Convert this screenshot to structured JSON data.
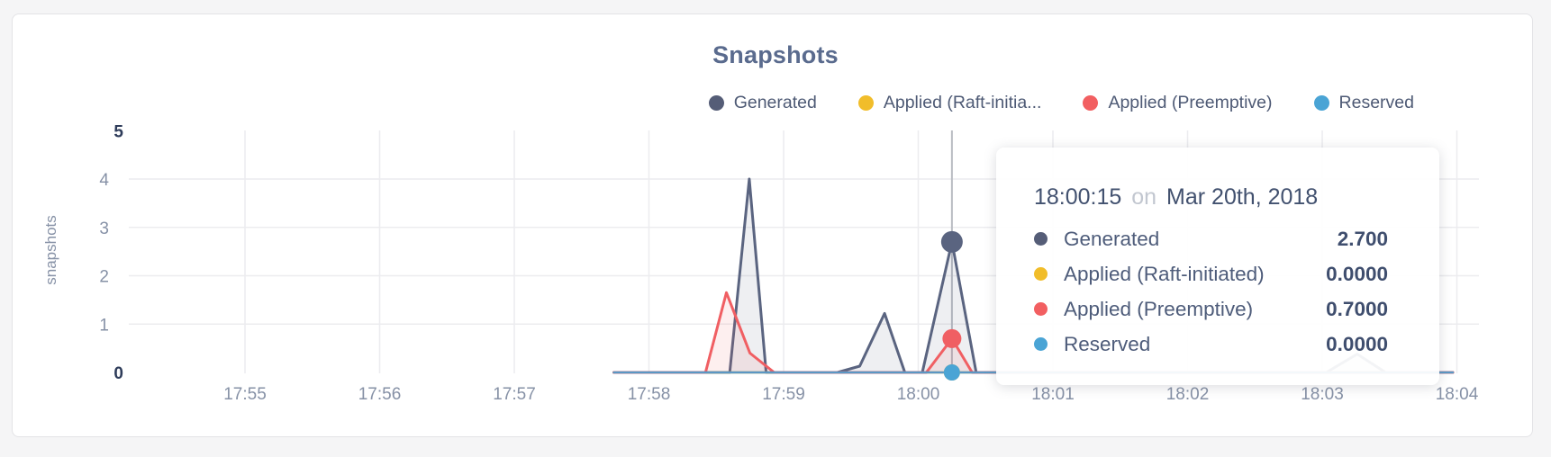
{
  "chart_data": {
    "type": "area",
    "title": "Snapshots",
    "ylabel": "snapshots",
    "x_ticks": [
      "17:55",
      "17:56",
      "17:57",
      "17:58",
      "17:59",
      "18:00",
      "18:01",
      "18:02",
      "18:03",
      "18:04"
    ],
    "x_unit": "minutes after 17:55",
    "ylim": [
      0,
      5
    ],
    "grid": true,
    "legend_position": "top-right",
    "y_ticks": [
      {
        "value": 5,
        "label": "5",
        "emphasis": true
      },
      {
        "value": 4,
        "label": "4",
        "emphasis": false
      },
      {
        "value": 3,
        "label": "3",
        "emphasis": false
      },
      {
        "value": 2,
        "label": "2",
        "emphasis": false
      },
      {
        "value": 1,
        "label": "1",
        "emphasis": false
      },
      {
        "value": 0,
        "label": "0",
        "emphasis": true
      }
    ],
    "y_gridlines": [
      4,
      3,
      2,
      1
    ],
    "series": [
      {
        "name": "Generated",
        "color": "#5a6480",
        "fill": "rgba(90,100,128,0.10)",
        "width": 3,
        "points": [
          [
            2.74,
            0
          ],
          [
            3.6,
            0
          ],
          [
            3.745,
            4.0
          ],
          [
            3.87,
            0
          ],
          [
            4.4,
            0
          ],
          [
            4.565,
            0.13
          ],
          [
            4.75,
            1.22
          ],
          [
            4.9,
            0
          ],
          [
            5.03,
            0
          ],
          [
            5.25,
            2.7
          ],
          [
            5.43,
            0
          ],
          [
            8.03,
            0
          ],
          [
            8.26,
            0.38
          ],
          [
            8.47,
            0
          ],
          [
            8.97,
            0
          ]
        ]
      },
      {
        "name": "Applied (Raft-initiated)",
        "color": "#f1bd2a",
        "fill": null,
        "width": 2.5,
        "points": [
          [
            2.74,
            0
          ],
          [
            8.97,
            0
          ]
        ]
      },
      {
        "name": "Applied (Preemptive)",
        "color": "#f05f63",
        "fill": "rgba(240,95,99,0.10)",
        "width": 3,
        "points": [
          [
            2.74,
            0
          ],
          [
            3.42,
            0
          ],
          [
            3.575,
            1.65
          ],
          [
            3.75,
            0.4
          ],
          [
            3.93,
            0
          ],
          [
            5.06,
            0
          ],
          [
            5.25,
            0.7
          ],
          [
            5.4,
            0
          ],
          [
            8.97,
            0
          ]
        ]
      },
      {
        "name": "Reserved",
        "color": "#5b97c4",
        "fill": null,
        "width": 2.5,
        "points": [
          [
            2.74,
            0
          ],
          [
            8.97,
            0
          ]
        ]
      }
    ],
    "hover": {
      "time": "18:00:15",
      "t": 5.25,
      "markers": [
        {
          "series": "Generated",
          "value": 2.7,
          "r": 12,
          "color": "#5a6480"
        },
        {
          "series": "Applied (Raft-initiated)",
          "value": 0,
          "r": 9,
          "color": "#f1bd2a"
        },
        {
          "series": "Reserved",
          "value": 0,
          "r": 9,
          "color": "#4aa4d5"
        },
        {
          "series": "Applied (Preemptive)",
          "value": 0.7,
          "r": 10.5,
          "color": "#f05f63"
        }
      ]
    }
  },
  "legend": {
    "items": [
      {
        "label": "Generated",
        "color": "#555d77"
      },
      {
        "label": "Applied (Raft-initia...",
        "color": "#f1bd2a"
      },
      {
        "label": "Applied (Preemptive)",
        "color": "#f25f61"
      },
      {
        "label": "Reserved",
        "color": "#4aa4d5"
      }
    ]
  },
  "tooltip": {
    "time": "18:00:15",
    "separator": "on",
    "date": "Mar 20th, 2018",
    "rows": [
      {
        "label": "Generated",
        "value": "2.700",
        "color": "#555d77"
      },
      {
        "label": "Applied (Raft-initiated)",
        "value": "0.0000",
        "color": "#f1bd2a"
      },
      {
        "label": "Applied (Preemptive)",
        "value": "0.7000",
        "color": "#f25f61"
      },
      {
        "label": "Reserved",
        "value": "0.0000",
        "color": "#4aa4d5"
      }
    ]
  }
}
